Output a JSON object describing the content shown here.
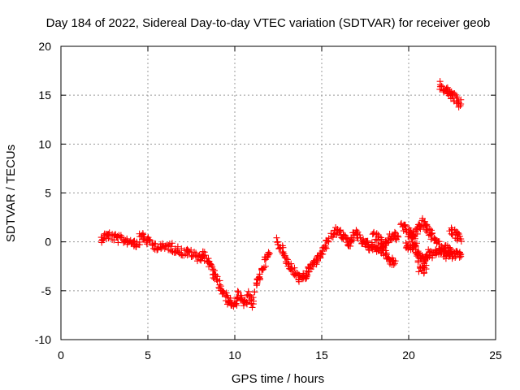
{
  "chart_data": {
    "type": "scatter",
    "title": "Day 184 of 2022, Sidereal Day-to-day VTEC variation (SDTVAR) for receiver geob",
    "xlabel": "GPS time / hours",
    "ylabel": "SDTVAR / TECUs",
    "xlim": [
      0,
      25
    ],
    "ylim": [
      -10,
      20
    ],
    "xticks": [
      0,
      5,
      10,
      15,
      20,
      25
    ],
    "yticks": [
      -10,
      -5,
      0,
      5,
      10,
      15,
      20
    ],
    "grid": true,
    "marker": "+",
    "color": "#ff0000",
    "series": [
      {
        "name": "SDTVAR",
        "segments": [
          [
            [
              2.3,
              0.3
            ],
            [
              2.5,
              0.6
            ],
            [
              2.7,
              0.7
            ],
            [
              3.0,
              0.5
            ],
            [
              3.3,
              0.3
            ],
            [
              3.6,
              0.2
            ],
            [
              3.9,
              0.1
            ],
            [
              4.2,
              0.0
            ],
            [
              4.4,
              -0.3
            ],
            [
              4.6,
              0.7
            ],
            [
              4.8,
              0.4
            ],
            [
              5.0,
              0.1
            ],
            [
              5.3,
              -0.3
            ],
            [
              5.6,
              -0.5
            ],
            [
              5.9,
              -0.6
            ],
            [
              6.2,
              -0.4
            ],
            [
              6.5,
              -0.7
            ],
            [
              6.8,
              -0.9
            ],
            [
              7.1,
              -1.1
            ],
            [
              7.4,
              -1.1
            ],
            [
              7.7,
              -1.4
            ],
            [
              8.0,
              -1.6
            ],
            [
              8.2,
              -1.2
            ],
            [
              8.4,
              -1.8
            ],
            [
              8.6,
              -2.5
            ],
            [
              8.8,
              -3.3
            ],
            [
              9.0,
              -4.0
            ],
            [
              9.2,
              -4.7
            ],
            [
              9.4,
              -5.4
            ],
            [
              9.6,
              -6.0
            ],
            [
              9.8,
              -6.2
            ],
            [
              10.0,
              -6.4
            ],
            [
              10.2,
              -5.4
            ],
            [
              10.4,
              -6.0
            ],
            [
              10.6,
              -6.4
            ],
            [
              10.8,
              -5.4
            ],
            [
              11.0,
              -6.6
            ],
            [
              11.2,
              -4.6
            ],
            [
              11.4,
              -3.6
            ],
            [
              11.6,
              -2.6
            ],
            [
              11.8,
              -1.7
            ],
            [
              12.0,
              -1.2
            ]
          ],
          [
            [
              12.4,
              0.2
            ],
            [
              12.6,
              -0.5
            ],
            [
              12.8,
              -1.2
            ],
            [
              13.0,
              -2.0
            ],
            [
              13.2,
              -2.6
            ],
            [
              13.4,
              -3.1
            ],
            [
              13.6,
              -3.6
            ],
            [
              13.8,
              -3.8
            ],
            [
              14.0,
              -3.6
            ],
            [
              14.2,
              -3.0
            ],
            [
              14.4,
              -2.6
            ],
            [
              14.6,
              -2.1
            ],
            [
              14.8,
              -1.7
            ],
            [
              15.0,
              -1.2
            ],
            [
              15.2,
              -0.4
            ],
            [
              15.4,
              0.0
            ]
          ],
          [
            [
              15.6,
              0.5
            ],
            [
              15.8,
              1.1
            ],
            [
              16.0,
              1.0
            ],
            [
              16.2,
              0.6
            ],
            [
              16.4,
              0.2
            ],
            [
              16.6,
              -0.3
            ],
            [
              16.8,
              0.5
            ],
            [
              17.0,
              0.9
            ],
            [
              17.2,
              0.5
            ],
            [
              17.4,
              -0.3
            ],
            [
              17.6,
              0.0
            ],
            [
              17.8,
              -0.6
            ],
            [
              18.0,
              -0.4
            ],
            [
              18.2,
              -0.7
            ],
            [
              18.4,
              -0.9
            ],
            [
              18.6,
              -0.3
            ],
            [
              18.8,
              0.1
            ],
            [
              19.0,
              0.5
            ],
            [
              19.2,
              0.7
            ],
            [
              19.4,
              0.5
            ]
          ],
          [
            [
              18.0,
              0.8
            ],
            [
              18.2,
              0.4
            ],
            [
              18.4,
              0.2
            ],
            [
              18.6,
              -1.2
            ],
            [
              18.8,
              -1.7
            ],
            [
              19.0,
              -2.0
            ],
            [
              19.2,
              -2.2
            ]
          ],
          [
            [
              19.6,
              1.8
            ],
            [
              19.8,
              1.4
            ],
            [
              20.0,
              1.0
            ],
            [
              20.2,
              0.7
            ],
            [
              20.4,
              0.9
            ],
            [
              20.6,
              1.6
            ],
            [
              20.8,
              2.0
            ],
            [
              21.0,
              1.5
            ],
            [
              21.2,
              1.0
            ],
            [
              21.4,
              0.5
            ],
            [
              21.6,
              0.0
            ],
            [
              21.8,
              -0.6
            ],
            [
              22.0,
              -1.0
            ],
            [
              22.2,
              -1.4
            ],
            [
              22.4,
              -1.4
            ],
            [
              22.6,
              -1.2
            ],
            [
              22.8,
              -1.4
            ],
            [
              23.0,
              -1.5
            ]
          ],
          [
            [
              19.8,
              -0.5
            ],
            [
              20.0,
              -0.4
            ],
            [
              20.2,
              -0.5
            ],
            [
              20.4,
              -0.8
            ],
            [
              20.6,
              -1.3
            ],
            [
              20.8,
              -1.8
            ],
            [
              21.0,
              -1.5
            ],
            [
              21.2,
              -1.2
            ],
            [
              21.4,
              -1.3
            ],
            [
              21.6,
              -1.1
            ],
            [
              21.8,
              -1.0
            ],
            [
              22.0,
              -0.8
            ],
            [
              22.2,
              -0.7
            ],
            [
              22.4,
              -0.8
            ]
          ],
          [
            [
              20.0,
              0.8
            ],
            [
              20.2,
              0.3
            ],
            [
              20.4,
              -0.2
            ],
            [
              20.6,
              -2.6
            ],
            [
              20.8,
              -2.9
            ],
            [
              21.0,
              -2.4
            ]
          ],
          [
            [
              22.4,
              1.2
            ],
            [
              22.6,
              0.9
            ],
            [
              22.8,
              0.6
            ],
            [
              23.0,
              0.3
            ]
          ],
          [
            [
              21.8,
              16.0
            ],
            [
              22.0,
              15.7
            ],
            [
              22.2,
              15.4
            ],
            [
              22.4,
              15.1
            ],
            [
              22.6,
              14.8
            ],
            [
              22.8,
              14.4
            ],
            [
              23.0,
              14.1
            ]
          ]
        ]
      }
    ]
  }
}
